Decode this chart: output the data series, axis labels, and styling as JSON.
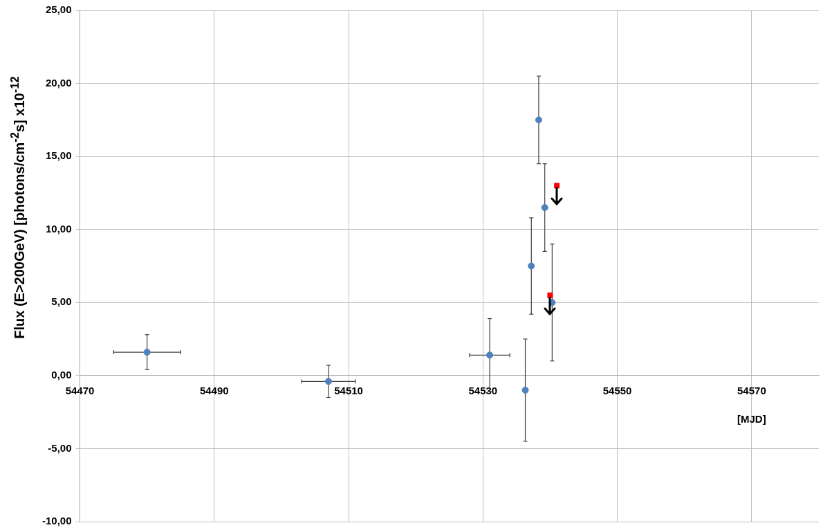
{
  "chart_data": {
    "type": "scatter",
    "xlabel": "[MJD]",
    "ylabel": "Flux (E>200GeV) [photons/cm$^{-2}$s] x10$^{-12}$",
    "series": [
      {
        "color": "#4f81bd",
        "marker": "circle",
        "x": [
          54480,
          54507,
          54531,
          54536.3,
          54537.2,
          54538.3,
          54539.2,
          54540.3
        ],
        "values": [
          1.6,
          -0.4,
          1.4,
          -1.0,
          7.5,
          17.5,
          11.5,
          5.0
        ],
        "errors": [
          1.2,
          1.1,
          2.5,
          3.5,
          3.3,
          3,
          3,
          4
        ],
        "xerrors": [
          5,
          4,
          3,
          null,
          null,
          null,
          null,
          null
        ]
      },
      {
        "color": "#ff0000",
        "marker": "square",
        "x": [
          54541,
          54540
        ],
        "values": [
          13.0,
          5.5
        ]
      }
    ],
    "xlim": [
      54470,
      54580
    ],
    "xticks": [
      54470,
      54490,
      54510,
      54530,
      54550,
      54570
    ],
    "ylim": [
      -10,
      25
    ],
    "yticks": [
      {
        "value": -10,
        "label": "-10,00"
      },
      {
        "value": -5,
        "label": "-5,00"
      },
      {
        "value": 0,
        "label": "0,00"
      },
      {
        "value": 5,
        "label": "5,00"
      },
      {
        "value": 10,
        "label": "10,00"
      },
      {
        "value": 15,
        "label": "15,00"
      },
      {
        "value": 20,
        "label": "20,00"
      },
      {
        "value": 25,
        "label": "25,00"
      }
    ],
    "grid": true,
    "legend": false
  }
}
